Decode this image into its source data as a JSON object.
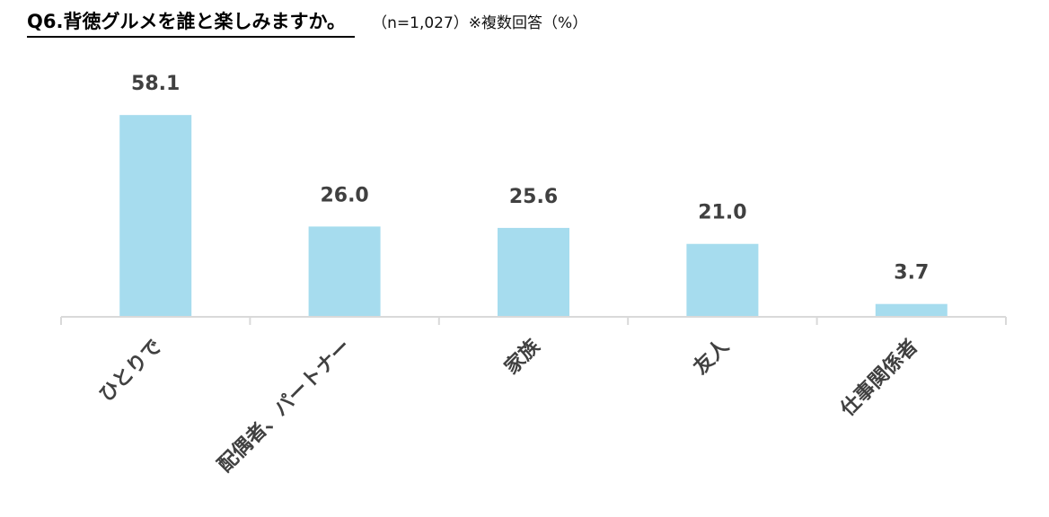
{
  "header": {
    "title": "Q6.背徳グルメを誰と楽しみますか。",
    "note": "（n=1,027）※複数回答（%）"
  },
  "chart_data": {
    "type": "bar",
    "title": "Q6.背徳グルメを誰と楽しみますか。",
    "categories": [
      "ひとりで",
      "配偶者、パートナー",
      "家族",
      "友人",
      "仕事関係者"
    ],
    "values": [
      58.1,
      26.0,
      25.6,
      21.0,
      3.7
    ],
    "value_labels": [
      "58.1",
      "26.0",
      "25.6",
      "21.0",
      "3.7"
    ],
    "xlabel": "",
    "ylabel": "",
    "ylim": [
      0,
      60
    ],
    "grid": false,
    "bar_color": "#a6dcee"
  }
}
